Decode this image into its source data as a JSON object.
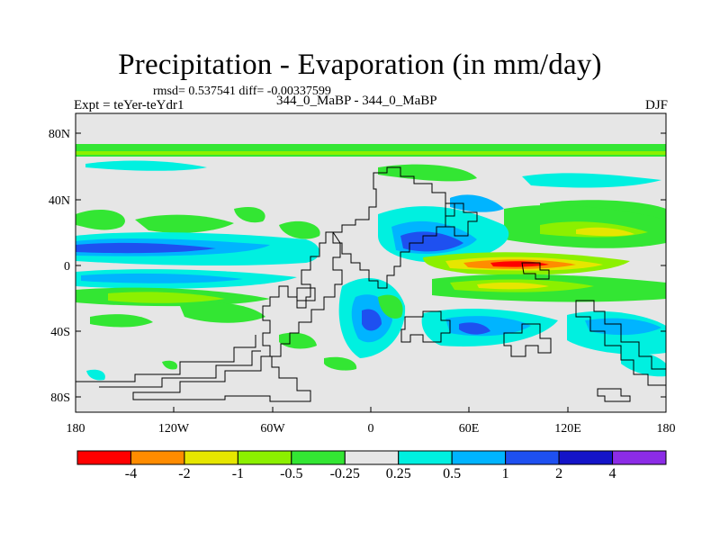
{
  "header": {
    "title": "Precipitation - Evaporation (in mm/day)",
    "stats": "rmsd= 0.537541 diff= -0.00337599",
    "experiment": "Expt = teYer-teYdr1",
    "difference": "344_0_MaBP - 344_0_MaBP",
    "season": "DJF"
  },
  "axes": {
    "lat_ticks": [
      "80N",
      "40N",
      "0",
      "40S",
      "80S"
    ],
    "lon_ticks": [
      "180",
      "120W",
      "60W",
      "0",
      "60E",
      "120E",
      "180"
    ]
  },
  "colorbar": {
    "labels": [
      "-4",
      "-2",
      "-1",
      "-0.5",
      "-0.25",
      "0.25",
      "0.5",
      "1",
      "2",
      "4"
    ],
    "colors": [
      "#ff0000",
      "#ff8c00",
      "#e6e600",
      "#8cf000",
      "#33e633",
      "#e6e6e6",
      "#00f0e0",
      "#00b4ff",
      "#1e50f0",
      "#1414c8",
      "#8c2ce6"
    ]
  }
}
